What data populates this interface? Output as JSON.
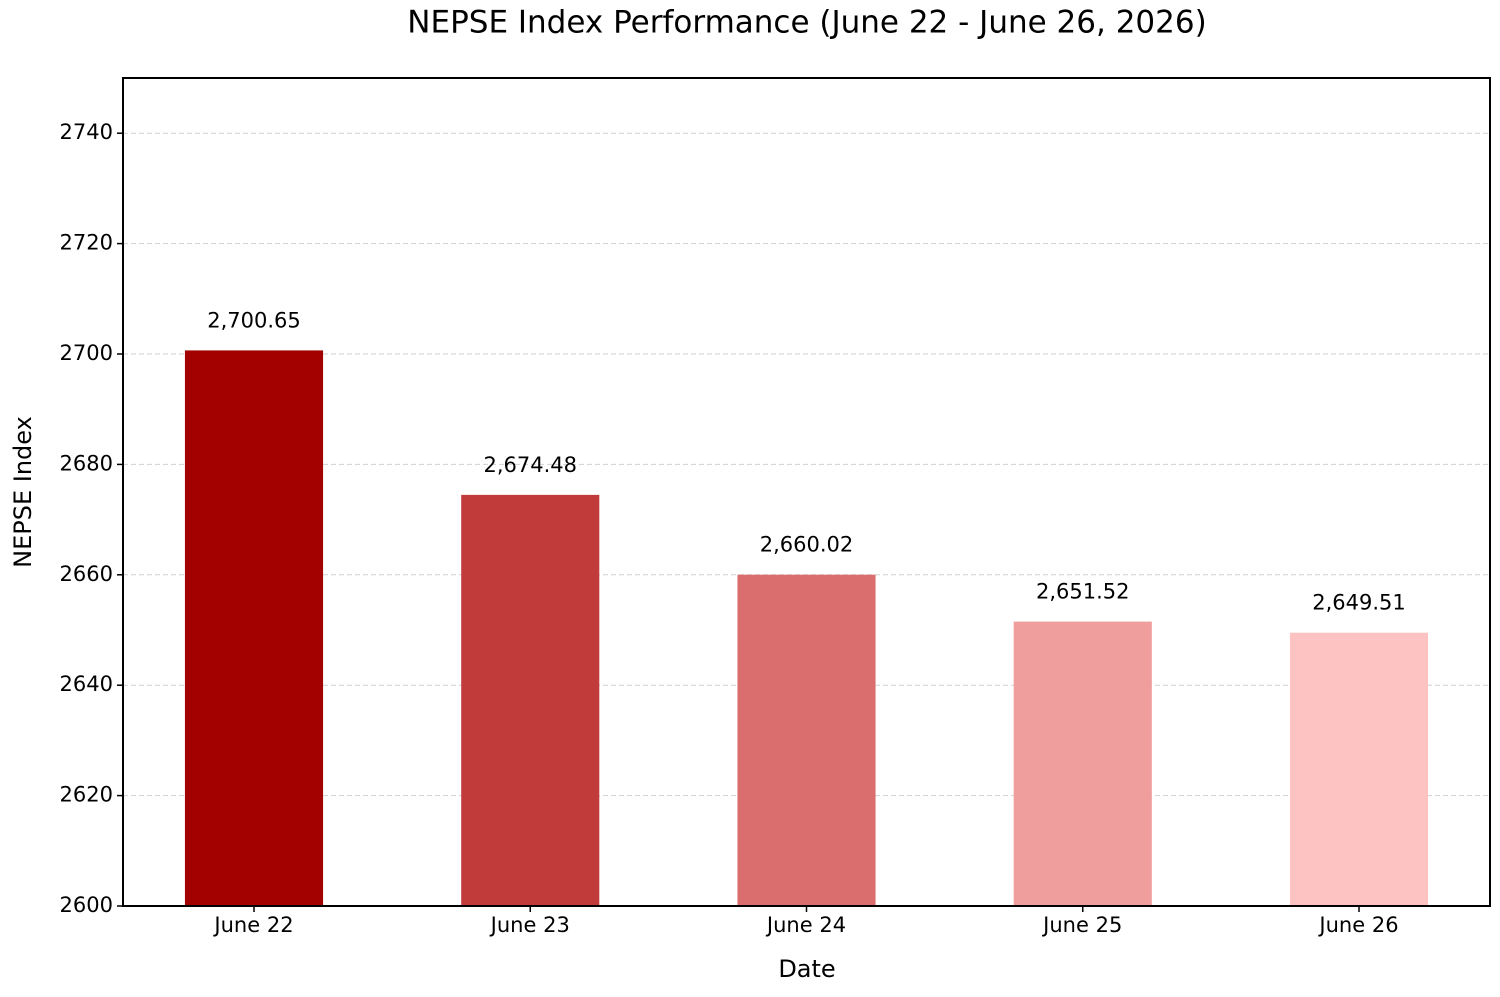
{
  "chart_data": {
    "type": "bar",
    "title": "NEPSE Index Performance (June 22 - June 26, 2026)",
    "x_label": "Date",
    "y_label": "NEPSE Index",
    "categories": [
      "June 22",
      "June 23",
      "June 24",
      "June 25",
      "June 26"
    ],
    "values": [
      2700.65,
      2674.48,
      2660.02,
      2651.52,
      2649.51
    ],
    "value_labels": [
      "2,700.65",
      "2,674.48",
      "2,660.02",
      "2,651.52",
      "2,649.51"
    ],
    "colors": [
      "#a30000",
      "#c13b3b",
      "#da6e6e",
      "#ef9d9d",
      "#fdc2c2"
    ],
    "ylim": [
      2600,
      2750
    ],
    "yticks": [
      2600,
      2620,
      2640,
      2660,
      2680,
      2700,
      2720,
      2740
    ],
    "grid": true
  }
}
